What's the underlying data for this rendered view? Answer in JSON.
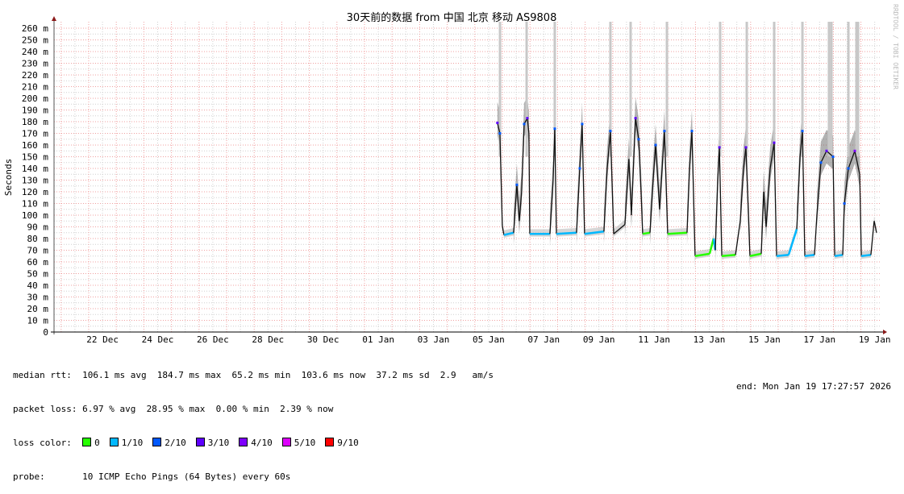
{
  "title": "30天前的数据 from  中国 北京 移动 AS9808",
  "watermark": "RRDTOOL / TOBI OETIKER",
  "chart_data": {
    "type": "line",
    "title": "30天前的数据 from  中国 北京 移动 AS9808",
    "ylabel": "Seconds",
    "xlabel": "",
    "ylim": [
      0,
      260
    ],
    "y_unit_note": "ms",
    "y_ticks": [
      "0",
      "10 m",
      "20 m",
      "30 m",
      "40 m",
      "50 m",
      "60 m",
      "70 m",
      "80 m",
      "90 m",
      "100 m",
      "110 m",
      "120 m",
      "130 m",
      "140 m",
      "150 m",
      "160 m",
      "170 m",
      "180 m",
      "190 m",
      "200 m",
      "210 m",
      "220 m",
      "230 m",
      "240 m",
      "250 m",
      "260 m"
    ],
    "x_ticks": [
      {
        "label": "22 Dec",
        "date": "2025-12-22T12:00"
      },
      {
        "label": "24 Dec",
        "date": "2025-12-24T12:00"
      },
      {
        "label": "26 Dec",
        "date": "2025-12-26T12:00"
      },
      {
        "label": "28 Dec",
        "date": "2025-12-28T12:00"
      },
      {
        "label": "30 Dec",
        "date": "2025-12-30T12:00"
      },
      {
        "label": "01 Jan",
        "date": "2026-01-01T12:00"
      },
      {
        "label": "03 Jan",
        "date": "2026-01-03T12:00"
      },
      {
        "label": "05 Jan",
        "date": "2026-01-05T12:00"
      },
      {
        "label": "07 Jan",
        "date": "2026-01-07T12:00"
      },
      {
        "label": "09 Jan",
        "date": "2026-01-09T12:00"
      },
      {
        "label": "11 Jan",
        "date": "2026-01-11T12:00"
      },
      {
        "label": "13 Jan",
        "date": "2026-01-13T12:00"
      },
      {
        "label": "15 Jan",
        "date": "2026-01-15T12:00"
      },
      {
        "label": "17 Jan",
        "date": "2026-01-17T12:00"
      },
      {
        "label": "19 Jan",
        "date": "2026-01-19T12:00"
      }
    ],
    "xlim": [
      "2025-12-20T17:30",
      "2026-01-19T17:27"
    ],
    "grid": true,
    "series": [
      {
        "name": "median rtt",
        "points": [
          [
            "2026-01-05T19:40",
            179,
            3
          ],
          [
            "2026-01-05T21:50",
            170,
            2
          ],
          [
            "2026-01-05T23:55",
            91,
            1
          ],
          [
            "2026-01-06T01:20",
            83,
            1
          ],
          [
            "2026-01-06T09:45",
            85,
            1
          ],
          [
            "2026-01-06T12:35",
            126,
            2
          ],
          [
            "2026-01-06T14:40",
            95,
            1
          ],
          [
            "2026-01-06T16:45",
            120,
            1
          ],
          [
            "2026-01-06T18:55",
            178,
            2
          ],
          [
            "2026-01-06T21:40",
            183,
            3
          ],
          [
            "2026-01-06T23:05",
            170,
            1
          ],
          [
            "2026-01-06T23:50",
            84,
            1
          ],
          [
            "2026-01-07T17:20",
            84,
            1
          ],
          [
            "2026-01-07T20:10",
            130,
            1
          ],
          [
            "2026-01-07T21:35",
            174,
            2
          ],
          [
            "2026-01-07T23:00",
            84,
            1
          ],
          [
            "2026-01-08T16:30",
            85,
            1
          ],
          [
            "2026-01-08T19:20",
            140,
            2
          ],
          [
            "2026-01-08T21:25",
            178,
            2
          ],
          [
            "2026-01-08T23:30",
            84,
            1
          ],
          [
            "2026-01-09T16:20",
            86,
            1
          ],
          [
            "2026-01-09T19:10",
            140,
            1
          ],
          [
            "2026-01-09T22:00",
            172,
            2
          ],
          [
            "2026-01-10T00:50",
            84,
            1
          ],
          [
            "2026-01-10T10:35",
            92,
            1
          ],
          [
            "2026-01-10T14:05",
            148,
            1
          ],
          [
            "2026-01-10T16:15",
            100,
            1
          ],
          [
            "2026-01-10T19:50",
            183,
            3
          ],
          [
            "2026-01-10T22:35",
            165,
            2
          ],
          [
            "2026-01-11T00:40",
            120,
            1
          ],
          [
            "2026-01-11T02:05",
            84,
            0
          ],
          [
            "2026-01-11T08:25",
            85,
            0
          ],
          [
            "2026-01-11T11:10",
            130,
            1
          ],
          [
            "2026-01-11T13:20",
            160,
            2
          ],
          [
            "2026-01-11T16:50",
            105,
            1
          ],
          [
            "2026-01-11T21:00",
            172,
            2
          ],
          [
            "2026-01-11T23:50",
            84,
            0
          ],
          [
            "2026-01-12T16:40",
            85,
            0
          ],
          [
            "2026-01-12T18:50",
            140,
            1
          ],
          [
            "2026-01-12T20:55",
            172,
            2
          ],
          [
            "2026-01-12T23:40",
            65,
            0
          ],
          [
            "2026-01-13T12:20",
            67,
            0
          ],
          [
            "2026-01-13T15:50",
            80,
            1
          ],
          [
            "2026-01-13T17:15",
            70,
            1
          ],
          [
            "2026-01-13T19:25",
            130,
            1
          ],
          [
            "2026-01-13T20:50",
            158,
            3
          ],
          [
            "2026-01-13T22:55",
            65,
            0
          ],
          [
            "2026-01-14T10:50",
            66,
            0
          ],
          [
            "2026-01-14T15:00",
            95,
            1
          ],
          [
            "2026-01-14T17:50",
            140,
            1
          ],
          [
            "2026-01-14T19:55",
            158,
            3
          ],
          [
            "2026-01-14T23:25",
            65,
            0
          ],
          [
            "2026-01-15T09:15",
            67,
            0
          ],
          [
            "2026-01-15T11:25",
            120,
            1
          ],
          [
            "2026-01-15T13:30",
            90,
            1
          ],
          [
            "2026-01-15T17:00",
            140,
            1
          ],
          [
            "2026-01-15T20:30",
            162,
            3
          ],
          [
            "2026-01-15T22:35",
            65,
            1
          ],
          [
            "2026-01-16T09:05",
            66,
            1
          ],
          [
            "2026-01-16T16:10",
            88,
            1
          ],
          [
            "2026-01-16T19:00",
            150,
            1
          ],
          [
            "2026-01-16T21:05",
            172,
            2
          ],
          [
            "2026-01-16T23:10",
            65,
            1
          ],
          [
            "2026-01-17T07:35",
            66,
            1
          ],
          [
            "2026-01-17T09:40",
            100,
            1
          ],
          [
            "2026-01-17T13:10",
            145,
            2
          ],
          [
            "2026-01-17T18:05",
            155,
            3
          ],
          [
            "2026-01-17T23:45",
            150,
            2
          ],
          [
            "2026-01-18T01:10",
            65,
            1
          ],
          [
            "2026-01-18T08:10",
            66,
            1
          ],
          [
            "2026-01-18T09:35",
            110,
            2
          ],
          [
            "2026-01-18T13:05",
            140,
            2
          ],
          [
            "2026-01-18T18:40",
            155,
            4
          ],
          [
            "2026-01-18T22:55",
            135,
            1
          ],
          [
            "2026-01-19T00:20",
            65,
            1
          ],
          [
            "2026-01-19T08:40",
            66,
            1
          ],
          [
            "2026-01-19T11:30",
            95,
            1
          ],
          [
            "2026-01-19T13:35",
            85,
            1
          ]
        ]
      }
    ],
    "loss_spikes": [
      "2026-01-05T21:55",
      "2026-01-06T21:05",
      "2026-01-07T21:35",
      "2026-01-09T22:00",
      "2026-01-10T15:35",
      "2026-01-11T23:10",
      "2026-01-13T21:30",
      "2026-01-14T20:40",
      "2026-01-15T20:30",
      "2026-01-16T21:05",
      "2026-01-17T20:10",
      "2026-01-17T22:20",
      "2026-01-18T13:05",
      "2026-01-18T20:05",
      "2026-01-18T21:30"
    ]
  },
  "legend": {
    "rtt_label": "median rtt:  ",
    "rtt_values": "106.1 ms avg  184.7 ms max  65.2 ms min  103.6 ms now  37.2 ms sd  2.9   am/s",
    "loss_label": "packet loss: ",
    "loss_values": "6.97 % avg  28.95 % max  0.00 % min  2.39 % now",
    "color_label": "loss color:  ",
    "loss_colors": [
      {
        "label": "0",
        "color": "#26ff00"
      },
      {
        "label": "1/10",
        "color": "#00b8ff"
      },
      {
        "label": "2/10",
        "color": "#0059ff"
      },
      {
        "label": "3/10",
        "color": "#5e00ff"
      },
      {
        "label": "4/10",
        "color": "#7e00ff"
      },
      {
        "label": "5/10",
        "color": "#dd00ff"
      },
      {
        "label": "9/10",
        "color": "#ff0000"
      }
    ],
    "probe_label": "probe:       ",
    "probe_value": "10 ICMP Echo Pings (64 Bytes) every 60s",
    "end": "end: Mon Jan 19 17:27:57 2026"
  }
}
